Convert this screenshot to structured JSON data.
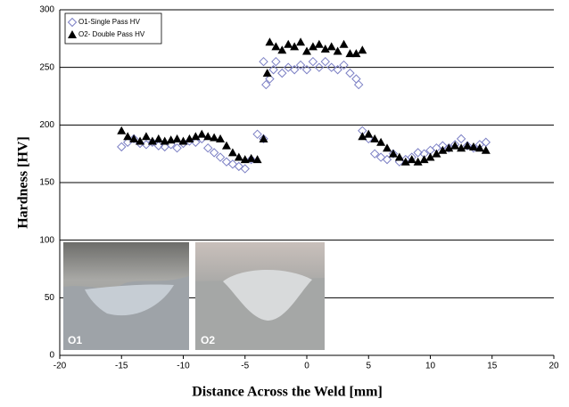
{
  "chart_data": {
    "type": "scatter",
    "x_label": "Distance Across the Weld [mm]",
    "y_label": "Hardness [HV]",
    "xlim": [
      -20,
      20
    ],
    "xticks": [
      -20,
      -15,
      -10,
      -5,
      0,
      5,
      10,
      15,
      20
    ],
    "ylim": [
      0,
      300
    ],
    "yticks": [
      0,
      50,
      100,
      150,
      200,
      250,
      300
    ],
    "grid": true,
    "legend": "top-left",
    "annotations": [
      "O1",
      "O2"
    ],
    "series": [
      {
        "name": "O1-Single Pass HV",
        "color": "#7b7fc4",
        "marker": "diamond",
        "x": [
          -15,
          -14.5,
          -14,
          -13.5,
          -13,
          -12.5,
          -12,
          -11.5,
          -11,
          -10.5,
          -10,
          -9.5,
          -9,
          -8.5,
          -8,
          -7.5,
          -7,
          -6.5,
          -6,
          -5.5,
          -5,
          -4.5,
          -4,
          -3.5,
          -3.5,
          -3.3,
          -3,
          -2.7,
          -2.5,
          -2,
          -1.5,
          -1,
          -0.5,
          0,
          0.5,
          1,
          1.5,
          2,
          2.5,
          3,
          3.5,
          4,
          4.2,
          4.5,
          5,
          5.5,
          6,
          6.5,
          7,
          7.5,
          8,
          8.5,
          9,
          9.5,
          10,
          10.5,
          11,
          11.5,
          12,
          12.5,
          13,
          13.5,
          14,
          14.5
        ],
        "values": [
          181,
          185,
          188,
          184,
          183,
          185,
          182,
          181,
          183,
          180,
          184,
          186,
          185,
          188,
          180,
          176,
          172,
          168,
          166,
          164,
          162,
          170,
          192,
          188,
          255,
          235,
          240,
          248,
          255,
          245,
          250,
          248,
          252,
          248,
          255,
          250,
          255,
          250,
          248,
          252,
          245,
          240,
          235,
          195,
          188,
          175,
          172,
          170,
          175,
          168,
          170,
          172,
          176,
          175,
          178,
          180,
          182,
          180,
          183,
          188,
          182,
          180,
          183,
          185
        ]
      },
      {
        "name": "O2- Double Pass HV",
        "color": "#000000",
        "marker": "triangle",
        "x": [
          -15,
          -14.5,
          -14,
          -13.5,
          -13,
          -12.5,
          -12,
          -11.5,
          -11,
          -10.5,
          -10,
          -9.5,
          -9,
          -8.5,
          -8,
          -7.5,
          -7,
          -6.5,
          -6,
          -5.5,
          -5,
          -4.5,
          -4,
          -3.5,
          -3.2,
          -3,
          -2.5,
          -2,
          -1.5,
          -1,
          -0.5,
          0,
          0.5,
          1,
          1.5,
          2,
          2.5,
          3,
          3.5,
          4,
          4.5,
          4.5,
          5,
          5.5,
          6,
          6.5,
          7,
          7.5,
          8,
          8.5,
          9,
          9.5,
          10,
          10.5,
          11,
          11.5,
          12,
          12.5,
          13,
          13.5,
          14,
          14.5
        ],
        "values": [
          195,
          190,
          188,
          186,
          190,
          186,
          188,
          186,
          187,
          188,
          186,
          188,
          190,
          192,
          190,
          189,
          188,
          182,
          176,
          172,
          170,
          171,
          170,
          188,
          245,
          272,
          268,
          265,
          270,
          268,
          272,
          264,
          268,
          270,
          266,
          268,
          264,
          270,
          262,
          262,
          265,
          190,
          192,
          188,
          185,
          180,
          175,
          172,
          168,
          170,
          168,
          170,
          172,
          175,
          178,
          180,
          182,
          180,
          182,
          181,
          180,
          178
        ]
      }
    ]
  }
}
